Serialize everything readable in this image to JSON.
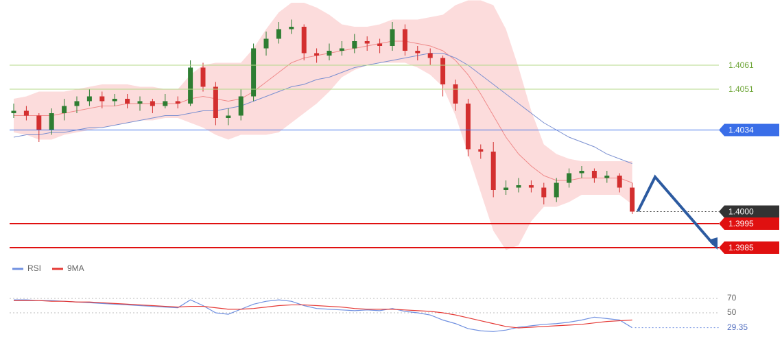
{
  "chart_data": [
    {
      "type": "candlestick",
      "up_color": "#2e7d32",
      "down_color": "#d32f2f",
      "open": [
        1.4041,
        1.4042,
        1.404,
        1.4034,
        1.4041,
        1.4044,
        1.4046,
        1.4048,
        1.4046,
        1.4047,
        1.4045,
        1.4046,
        1.4044,
        1.4046,
        1.4045,
        1.406,
        1.4052,
        1.4039,
        1.404,
        1.4048,
        1.4068,
        1.4072,
        1.4076,
        1.4077,
        1.4066,
        1.4065,
        1.4067,
        1.4068,
        1.4071,
        1.407,
        1.4069,
        1.4076,
        1.4067,
        1.4066,
        1.4064,
        1.4053,
        1.4045,
        1.4026,
        1.4025,
        1.4009,
        1.401,
        1.4011,
        1.401,
        1.4006,
        1.4012,
        1.4016,
        1.4017,
        1.4014,
        1.4015,
        1.401
      ],
      "high": [
        1.4045,
        1.4044,
        1.4041,
        1.4043,
        1.4047,
        1.4048,
        1.4051,
        1.405,
        1.4049,
        1.4049,
        1.4048,
        1.4047,
        1.4049,
        1.4048,
        1.4063,
        1.4062,
        1.4054,
        1.4043,
        1.4051,
        1.407,
        1.4075,
        1.4079,
        1.408,
        1.4078,
        1.4068,
        1.407,
        1.4071,
        1.4074,
        1.4073,
        1.4072,
        1.4079,
        1.4078,
        1.4069,
        1.4068,
        1.4065,
        1.4055,
        1.4047,
        1.4028,
        1.4029,
        1.4013,
        1.4014,
        1.4013,
        1.4012,
        1.4014,
        1.4018,
        1.4019,
        1.4018,
        1.4017,
        1.4016,
        1.4012
      ],
      "low": [
        1.4039,
        1.4038,
        1.4029,
        1.4032,
        1.4038,
        1.4041,
        1.4044,
        1.4043,
        1.4044,
        1.4043,
        1.4042,
        1.4041,
        1.4043,
        1.4043,
        1.4044,
        1.405,
        1.4036,
        1.4036,
        1.4038,
        1.4046,
        1.4065,
        1.407,
        1.4074,
        1.4063,
        1.4062,
        1.4063,
        1.4065,
        1.4066,
        1.4067,
        1.4066,
        1.4067,
        1.4065,
        1.4063,
        1.4061,
        1.4048,
        1.4042,
        1.4023,
        1.4022,
        1.4006,
        1.4007,
        1.4008,
        1.4008,
        1.4003,
        1.4004,
        1.401,
        1.4014,
        1.4012,
        1.4012,
        1.4008,
        1.3999
      ],
      "close": [
        1.4042,
        1.404,
        1.4034,
        1.4041,
        1.4044,
        1.4046,
        1.4048,
        1.4046,
        1.4047,
        1.4045,
        1.4046,
        1.4044,
        1.4046,
        1.4045,
        1.406,
        1.4052,
        1.4039,
        1.404,
        1.4048,
        1.4068,
        1.4072,
        1.4076,
        1.4077,
        1.4066,
        1.4065,
        1.4067,
        1.4068,
        1.4071,
        1.407,
        1.4069,
        1.4076,
        1.4067,
        1.4066,
        1.4064,
        1.4053,
        1.4045,
        1.4026,
        1.4025,
        1.4009,
        1.401,
        1.4011,
        1.401,
        1.4006,
        1.4012,
        1.4016,
        1.4017,
        1.4014,
        1.4015,
        1.401,
        1.4
      ],
      "band": {
        "color": "#fbd3d3",
        "upper": [
          1.4047,
          1.4048,
          1.405,
          1.405,
          1.405,
          1.4051,
          1.4052,
          1.4053,
          1.4053,
          1.4053,
          1.4052,
          1.4052,
          1.4051,
          1.4051,
          1.4057,
          1.4061,
          1.4062,
          1.4062,
          1.4062,
          1.4068,
          1.4076,
          1.4083,
          1.4087,
          1.4087,
          1.4085,
          1.4082,
          1.4078,
          1.4077,
          1.4077,
          1.4078,
          1.408,
          1.408,
          1.408,
          1.4081,
          1.4082,
          1.4086,
          1.4088,
          1.4088,
          1.4086,
          1.4076,
          1.406,
          1.4042,
          1.4028,
          1.4024,
          1.4022,
          1.4021,
          1.4021,
          1.4021,
          1.4021,
          1.4021
        ],
        "lower": [
          1.4033,
          1.4032,
          1.403,
          1.403,
          1.4032,
          1.4033,
          1.4034,
          1.4035,
          1.4036,
          1.4037,
          1.4038,
          1.4038,
          1.4039,
          1.4039,
          1.4037,
          1.4035,
          1.4032,
          1.403,
          1.4032,
          1.4032,
          1.4032,
          1.4033,
          1.4037,
          1.4041,
          1.4045,
          1.405,
          1.4056,
          1.4059,
          1.4061,
          1.4062,
          1.4062,
          1.4062,
          1.406,
          1.4057,
          1.4052,
          1.404,
          1.4024,
          1.4008,
          1.3992,
          1.3984,
          1.3986,
          1.3996,
          1.4002,
          1.4002,
          1.4004,
          1.4007,
          1.4007,
          1.4007,
          1.4007,
          1.4003
        ]
      },
      "overlays": [
        {
          "color": "#ef8a8a",
          "values": [
            1.404,
            1.404,
            1.404,
            1.404,
            1.4041,
            1.4042,
            1.4043,
            1.4044,
            1.4044,
            1.4045,
            1.4045,
            1.4045,
            1.4045,
            1.4045,
            1.4047,
            1.4048,
            1.4047,
            1.4046,
            1.4047,
            1.405,
            1.4054,
            1.4058,
            1.4062,
            1.4064,
            1.4065,
            1.4066,
            1.4067,
            1.4068,
            1.4069,
            1.407,
            1.4071,
            1.4071,
            1.407,
            1.4069,
            1.4067,
            1.4063,
            1.4057,
            1.4049,
            1.404,
            1.4031,
            1.4024,
            1.4019,
            1.4015,
            1.4013,
            1.4013,
            1.4014,
            1.4014,
            1.4014,
            1.4014,
            1.4012
          ]
        },
        {
          "color": "#7a8fd0",
          "values": [
            1.4031,
            1.4032,
            1.4032,
            1.4033,
            1.4033,
            1.4034,
            1.4035,
            1.4035,
            1.4036,
            1.4037,
            1.4038,
            1.4039,
            1.404,
            1.404,
            1.4041,
            1.4042,
            1.4042,
            1.4043,
            1.4044,
            1.4046,
            1.4048,
            1.405,
            1.4052,
            1.4053,
            1.4055,
            1.4056,
            1.4058,
            1.406,
            1.4061,
            1.4062,
            1.4063,
            1.4064,
            1.4065,
            1.4066,
            1.4066,
            1.4064,
            1.4061,
            1.4057,
            1.4053,
            1.4049,
            1.4045,
            1.4041,
            1.4037,
            1.4034,
            1.4031,
            1.4029,
            1.4027,
            1.4024,
            1.4022,
            1.402
          ]
        }
      ],
      "ylim": [
        1.3979,
        1.4088
      ],
      "levels": [
        {
          "price": 1.4061,
          "color": "#b5d98a",
          "text_color": "#6aa332",
          "tag": false,
          "dash": false,
          "width": 1
        },
        {
          "price": 1.4051,
          "color": "#b5d98a",
          "text_color": "#6aa332",
          "tag": false,
          "dash": false,
          "width": 1
        },
        {
          "price": 1.4034,
          "color": "#3a6ee8",
          "text_color": "#ffffff",
          "tag": true,
          "dash": false,
          "width": 1
        },
        {
          "price": {
            "value": 1.4,
            "label": "1.4000"
          },
          "color": "#333333",
          "text_color": "#ffffff",
          "tag": true,
          "dash": true,
          "width": 1
        },
        {
          "price": 1.3995,
          "color": "#e01010",
          "text_color": "#ffffff",
          "tag": true,
          "dash": false,
          "width": 2
        },
        {
          "price": 1.3985,
          "color": "#e01010",
          "text_color": "#ffffff",
          "tag": true,
          "dash": false,
          "width": 2
        }
      ]
    },
    {
      "type": "line",
      "series": [
        {
          "name": "RSI",
          "color": "#7090e0",
          "values": [
            68,
            68,
            67,
            67,
            66,
            65,
            64,
            63,
            62,
            61,
            60,
            59,
            58,
            57,
            68,
            60,
            50,
            48,
            55,
            62,
            66,
            68,
            66,
            60,
            56,
            55,
            54,
            53,
            54,
            53,
            56,
            52,
            50,
            47,
            40,
            35,
            28,
            25,
            24,
            26,
            30,
            32,
            34,
            35,
            37,
            40,
            44,
            42,
            40,
            29.35
          ]
        },
        {
          "name": "9MA",
          "color": "#e53935",
          "values": [
            67,
            67,
            67,
            66,
            66,
            65,
            65,
            64,
            63,
            62,
            61,
            60,
            59,
            58,
            59,
            59,
            57,
            55,
            55,
            56,
            58,
            60,
            61,
            61,
            60,
            59,
            58,
            56,
            55,
            55,
            55,
            54,
            53,
            52,
            50,
            47,
            43,
            39,
            35,
            31,
            29,
            30,
            31,
            32,
            33,
            34,
            36,
            38,
            39,
            40
          ]
        }
      ],
      "ylim": [
        15,
        100
      ],
      "yticks": [
        50,
        70
      ]
    }
  ]
}
